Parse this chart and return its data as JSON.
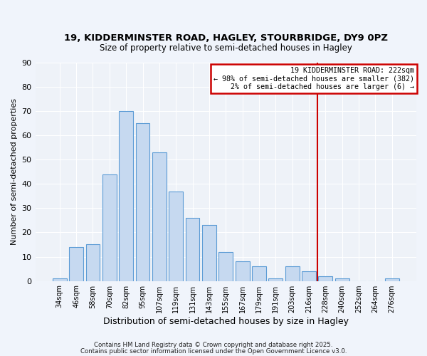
{
  "title": "19, KIDDERMINSTER ROAD, HAGLEY, STOURBRIDGE, DY9 0PZ",
  "subtitle": "Size of property relative to semi-detached houses in Hagley",
  "xlabel": "Distribution of semi-detached houses by size in Hagley",
  "ylabel": "Number of semi-detached properties",
  "bar_labels": [
    "34sqm",
    "46sqm",
    "58sqm",
    "70sqm",
    "82sqm",
    "95sqm",
    "107sqm",
    "119sqm",
    "131sqm",
    "143sqm",
    "155sqm",
    "167sqm",
    "179sqm",
    "191sqm",
    "203sqm",
    "216sqm",
    "228sqm",
    "240sqm",
    "252sqm",
    "264sqm",
    "276sqm"
  ],
  "bar_values": [
    1,
    14,
    15,
    44,
    70,
    65,
    53,
    37,
    26,
    23,
    12,
    8,
    6,
    1,
    6,
    4,
    2,
    1,
    0,
    0,
    1
  ],
  "bar_color": "#c6d9f0",
  "bar_edgecolor": "#5b9bd5",
  "ylim": [
    0,
    90
  ],
  "yticks": [
    0,
    10,
    20,
    30,
    40,
    50,
    60,
    70,
    80,
    90
  ],
  "annotation_title": "19 KIDDERMINSTER ROAD: 222sqm",
  "annotation_line1": "← 98% of semi-detached houses are smaller (382)",
  "annotation_line2": "2% of semi-detached houses are larger (6) →",
  "vline_x_index": 15.5,
  "annotation_box_color": "#ffffff",
  "annotation_border_color": "#cc0000",
  "vline_color": "#cc0000",
  "footer1": "Contains HM Land Registry data © Crown copyright and database right 2025.",
  "footer2": "Contains public sector information licensed under the Open Government Licence v3.0.",
  "bg_color": "#f0f4fb",
  "plot_bg_color": "#eef2f8"
}
